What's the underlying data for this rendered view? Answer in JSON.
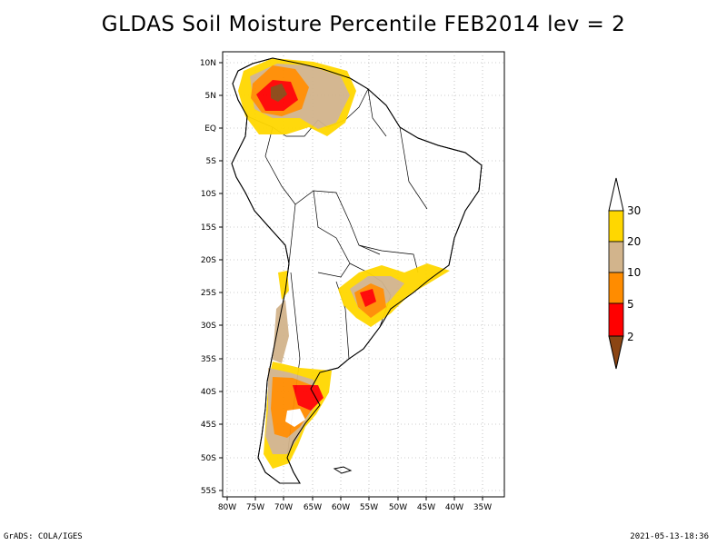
{
  "title": "GLDAS Soil Moisture Percentile FEB2014 lev = 2",
  "footer": {
    "left": "GrADS: COLA/IGES",
    "right": "2021-05-13-18:36"
  },
  "map": {
    "lat_labels": [
      "10N",
      "5N",
      "EQ",
      "5S",
      "10S",
      "15S",
      "20S",
      "25S",
      "30S",
      "35S",
      "40S",
      "45S",
      "50S",
      "55S"
    ],
    "lon_labels": [
      "80W",
      "75W",
      "70W",
      "65W",
      "60W",
      "55W",
      "50W",
      "45W",
      "40W",
      "35W"
    ],
    "lat_values": [
      10,
      5,
      0,
      -5,
      -10,
      -15,
      -20,
      -25,
      -30,
      -35,
      -40,
      -45,
      -50,
      -55
    ],
    "lon_values": [
      -80,
      -75,
      -70,
      -65,
      -60,
      -55,
      -50,
      -45,
      -40,
      -35
    ]
  },
  "colorbar": {
    "levels": [
      "30",
      "20",
      "10",
      "5",
      "2"
    ],
    "colors": {
      "gt30": "#ffffff",
      "c20_30": "#ffd700",
      "c10_20": "#d2b48c",
      "c5_10": "#ff8c00",
      "c2_5": "#ff0000",
      "lt2": "#8b4513"
    }
  },
  "legend_colors": {
    "brown": "#8b4513",
    "red": "#ff0000",
    "orange": "#ff8c00",
    "tan": "#d2b48c",
    "gold": "#ffd700"
  }
}
